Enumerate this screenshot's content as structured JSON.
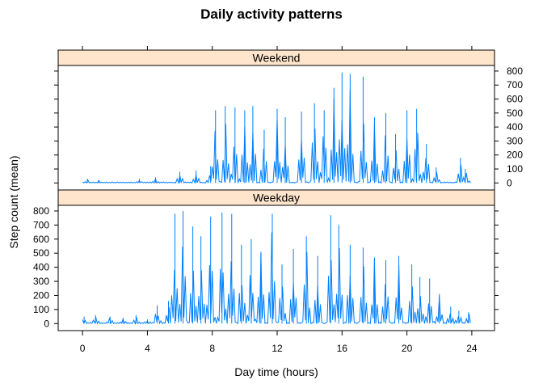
{
  "chart_data": {
    "type": "line",
    "title": "Daily activity patterns",
    "xlabel": "Day time (hours)",
    "ylabel": "Step count (mean)",
    "xlim": [
      -1.5,
      25.4
    ],
    "xticks": [
      0,
      4,
      8,
      12,
      16,
      20,
      24
    ],
    "line_color": "#0080ff",
    "strip_color": "#ffe5cc",
    "panels": [
      {
        "name": "Weekend",
        "ylim": [
          -50,
          840
        ],
        "yticks": [
          0,
          100,
          200,
          300,
          400,
          500,
          600,
          700,
          800
        ],
        "peaks": [
          {
            "x": 0.3,
            "y": 30
          },
          {
            "x": 1.0,
            "y": 20
          },
          {
            "x": 3.5,
            "y": 30
          },
          {
            "x": 4.5,
            "y": 40
          },
          {
            "x": 6.0,
            "y": 80
          },
          {
            "x": 7.0,
            "y": 90
          },
          {
            "x": 7.9,
            "y": 120
          },
          {
            "x": 8.2,
            "y": 520
          },
          {
            "x": 8.8,
            "y": 550
          },
          {
            "x": 9.4,
            "y": 540
          },
          {
            "x": 10.0,
            "y": 520
          },
          {
            "x": 10.5,
            "y": 550
          },
          {
            "x": 11.2,
            "y": 380
          },
          {
            "x": 12.0,
            "y": 530
          },
          {
            "x": 12.5,
            "y": 470
          },
          {
            "x": 13.5,
            "y": 510
          },
          {
            "x": 14.3,
            "y": 570
          },
          {
            "x": 14.9,
            "y": 520
          },
          {
            "x": 15.5,
            "y": 680
          },
          {
            "x": 16.0,
            "y": 790
          },
          {
            "x": 16.5,
            "y": 780
          },
          {
            "x": 17.3,
            "y": 760
          },
          {
            "x": 18.0,
            "y": 470
          },
          {
            "x": 18.7,
            "y": 500
          },
          {
            "x": 19.3,
            "y": 350
          },
          {
            "x": 20.0,
            "y": 520
          },
          {
            "x": 20.6,
            "y": 530
          },
          {
            "x": 21.2,
            "y": 280
          },
          {
            "x": 21.8,
            "y": 110
          },
          {
            "x": 23.3,
            "y": 180
          },
          {
            "x": 23.6,
            "y": 100
          },
          {
            "x": 23.9,
            "y": 10
          }
        ]
      },
      {
        "name": "Weekday",
        "ylim": [
          -50,
          840
        ],
        "yticks": [
          0,
          100,
          200,
          300,
          400,
          500,
          600,
          700,
          800
        ],
        "peaks": [
          {
            "x": 0.1,
            "y": 50
          },
          {
            "x": 0.8,
            "y": 60
          },
          {
            "x": 1.7,
            "y": 50
          },
          {
            "x": 2.5,
            "y": 40
          },
          {
            "x": 3.3,
            "y": 60
          },
          {
            "x": 4.0,
            "y": 30
          },
          {
            "x": 4.6,
            "y": 130
          },
          {
            "x": 5.3,
            "y": 160
          },
          {
            "x": 5.7,
            "y": 780
          },
          {
            "x": 6.2,
            "y": 800
          },
          {
            "x": 6.8,
            "y": 690
          },
          {
            "x": 7.3,
            "y": 620
          },
          {
            "x": 7.9,
            "y": 760
          },
          {
            "x": 8.6,
            "y": 790
          },
          {
            "x": 9.2,
            "y": 780
          },
          {
            "x": 9.8,
            "y": 560
          },
          {
            "x": 10.4,
            "y": 600
          },
          {
            "x": 11.0,
            "y": 510
          },
          {
            "x": 11.7,
            "y": 780
          },
          {
            "x": 12.3,
            "y": 420
          },
          {
            "x": 13.0,
            "y": 530
          },
          {
            "x": 13.8,
            "y": 620
          },
          {
            "x": 14.5,
            "y": 480
          },
          {
            "x": 15.3,
            "y": 770
          },
          {
            "x": 15.8,
            "y": 700
          },
          {
            "x": 16.5,
            "y": 560
          },
          {
            "x": 17.3,
            "y": 540
          },
          {
            "x": 18.0,
            "y": 470
          },
          {
            "x": 18.7,
            "y": 450
          },
          {
            "x": 19.5,
            "y": 480
          },
          {
            "x": 20.3,
            "y": 420
          },
          {
            "x": 20.8,
            "y": 330
          },
          {
            "x": 21.4,
            "y": 320
          },
          {
            "x": 22.0,
            "y": 210
          },
          {
            "x": 22.7,
            "y": 120
          },
          {
            "x": 23.2,
            "y": 90
          },
          {
            "x": 23.8,
            "y": 80
          }
        ]
      }
    ]
  }
}
